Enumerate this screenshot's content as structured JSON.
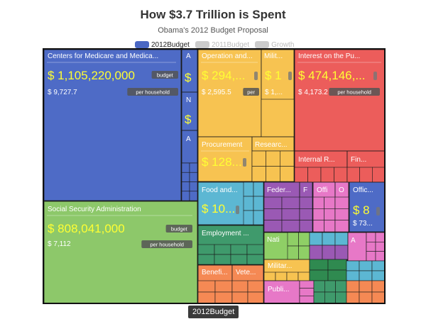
{
  "title": "How $3.7 Trillion is Spent",
  "subtitle": "Obama's 2012 Budget Proposal",
  "legend": [
    {
      "label": "2012Budget",
      "color": "#4a67c3",
      "active": true
    },
    {
      "label": "2011Budget",
      "color": "#cccccc",
      "active": false
    },
    {
      "label": "Growth",
      "color": "#cccccc",
      "active": false
    }
  ],
  "footer_tab": "2012Budget",
  "badges": {
    "budget": "budget",
    "per_household": "per household"
  },
  "colors": {
    "blue": "#4e6bc6",
    "green": "#8dc86a",
    "orange": "#f7c351",
    "red": "#ec5d5b",
    "cyan": "#5cb7d3",
    "purple": "#9a59b4",
    "pink": "#e778c7",
    "teal": "#3f9a6c",
    "olive": "#8fcf66",
    "darkgreen": "#2f8a50",
    "salmon": "#f58954",
    "border": "#111111",
    "value_text": "#ffff33"
  },
  "chart_data": {
    "type": "treemap",
    "title": "How $3.7 Trillion is Spent",
    "subtitle": "Obama's 2012 Budget Proposal",
    "nodes": [
      {
        "name": "Centers for Medicare and Medica...",
        "value": "$ 1,105,220,000",
        "per_household": "$ 9,727.7",
        "color": "blue"
      },
      {
        "name": "Social Security Administration",
        "value": "$ 808,041,000",
        "per_household": "$ 7,112",
        "color": "green"
      },
      {
        "name": "A",
        "value": "$",
        "color": "blue"
      },
      {
        "name": "N",
        "value": "$",
        "color": "blue"
      },
      {
        "name": "A",
        "value": "",
        "color": "blue"
      },
      {
        "name": "Operation and...",
        "value": "$ 294,...",
        "per_household": "$ 2,595.5",
        "color": "orange"
      },
      {
        "name": "Milit...",
        "value": "$ 1",
        "per_household": "$ 1,...",
        "color": "orange"
      },
      {
        "name": "Procurement",
        "value": "$ 128...",
        "color": "orange"
      },
      {
        "name": "Researc...",
        "value": "",
        "color": "orange"
      },
      {
        "name": "Interest on the Pu...",
        "value": "$ 474,146,...",
        "per_household": "$ 4,173.2",
        "color": "red"
      },
      {
        "name": "Internal R...",
        "value": "",
        "color": "red"
      },
      {
        "name": "Fin...",
        "value": "",
        "color": "red"
      },
      {
        "name": "Food and...",
        "value": "$ 10...",
        "color": "cyan"
      },
      {
        "name": "Employment ...",
        "value": "",
        "color": "teal"
      },
      {
        "name": "Benefi...",
        "value": "",
        "color": "salmon"
      },
      {
        "name": "Vete...",
        "value": "",
        "color": "salmon"
      },
      {
        "name": "Feder...",
        "value": "",
        "color": "purple"
      },
      {
        "name": "F",
        "value": "",
        "color": "purple"
      },
      {
        "name": "Offi",
        "value": "",
        "color": "pink"
      },
      {
        "name": "O",
        "value": "",
        "color": "pink"
      },
      {
        "name": "Offic...",
        "value": "$ 8",
        "per_household": "$ 73...",
        "color": "blue"
      },
      {
        "name": "Nati",
        "value": "",
        "color": "olive"
      },
      {
        "name": "A",
        "value": "",
        "color": "pink"
      },
      {
        "name": "Militar...",
        "value": "",
        "color": "orange"
      },
      {
        "name": "Publi...",
        "value": "",
        "color": "pink"
      }
    ]
  }
}
